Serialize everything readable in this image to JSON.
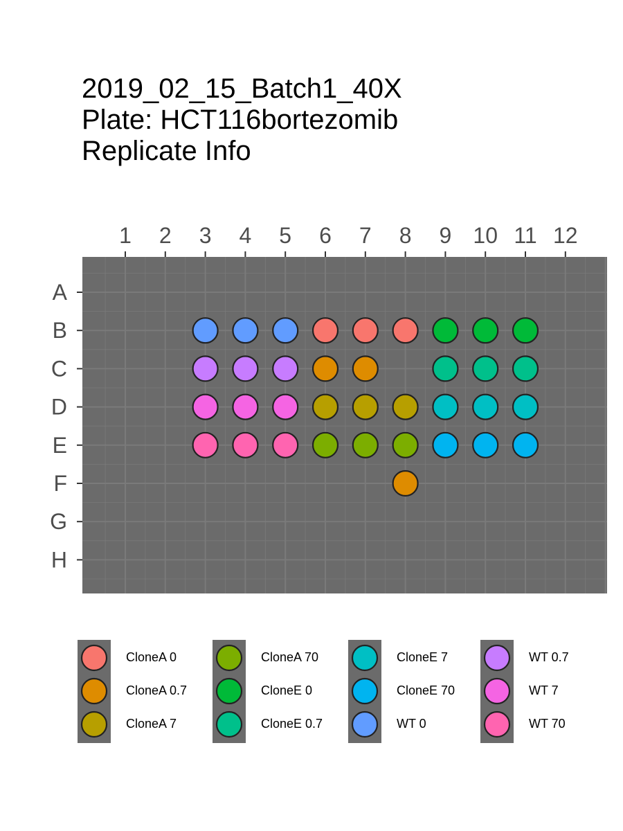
{
  "title_lines": [
    "2019_02_15_Batch1_40X",
    "Plate: HCT116bortezomib",
    "Replicate Info"
  ],
  "chart_data": {
    "type": "scatter",
    "chart_kind": "plate-map",
    "x_ticks": [
      "1",
      "2",
      "3",
      "4",
      "5",
      "6",
      "7",
      "8",
      "9",
      "10",
      "11",
      "12"
    ],
    "y_ticks": [
      "A",
      "B",
      "C",
      "D",
      "E",
      "F",
      "G",
      "H"
    ],
    "x_axis_position": "top",
    "panel_background": "#6b6b6b",
    "grid": true,
    "legend_position": "bottom",
    "series": [
      {
        "name": "CloneA 0",
        "color": "#F8766D",
        "wells": [
          [
            "B",
            6
          ],
          [
            "B",
            7
          ],
          [
            "B",
            8
          ]
        ]
      },
      {
        "name": "CloneA 0.7",
        "color": "#DE8C00",
        "wells": [
          [
            "C",
            6
          ],
          [
            "C",
            7
          ],
          [
            "F",
            8
          ]
        ]
      },
      {
        "name": "CloneA 7",
        "color": "#B79F00",
        "wells": [
          [
            "D",
            6
          ],
          [
            "D",
            7
          ],
          [
            "D",
            8
          ]
        ]
      },
      {
        "name": "CloneA 70",
        "color": "#7CAE00",
        "wells": [
          [
            "E",
            6
          ],
          [
            "E",
            7
          ],
          [
            "E",
            8
          ]
        ]
      },
      {
        "name": "CloneE 0",
        "color": "#00BA38",
        "wells": [
          [
            "B",
            9
          ],
          [
            "B",
            10
          ],
          [
            "B",
            11
          ]
        ]
      },
      {
        "name": "CloneE 0.7",
        "color": "#00C08B",
        "wells": [
          [
            "C",
            9
          ],
          [
            "C",
            10
          ],
          [
            "C",
            11
          ]
        ]
      },
      {
        "name": "CloneE 7",
        "color": "#00BFC4",
        "wells": [
          [
            "D",
            9
          ],
          [
            "D",
            10
          ],
          [
            "D",
            11
          ]
        ]
      },
      {
        "name": "CloneE 70",
        "color": "#00B4F0",
        "wells": [
          [
            "E",
            9
          ],
          [
            "E",
            10
          ],
          [
            "E",
            11
          ]
        ]
      },
      {
        "name": "WT 0",
        "color": "#619CFF",
        "wells": [
          [
            "B",
            3
          ],
          [
            "B",
            4
          ],
          [
            "B",
            5
          ]
        ]
      },
      {
        "name": "WT 0.7",
        "color": "#C77CFF",
        "wells": [
          [
            "C",
            3
          ],
          [
            "C",
            4
          ],
          [
            "C",
            5
          ]
        ]
      },
      {
        "name": "WT 7",
        "color": "#F564E3",
        "wells": [
          [
            "D",
            3
          ],
          [
            "D",
            4
          ],
          [
            "D",
            5
          ]
        ]
      },
      {
        "name": "WT 70",
        "color": "#FF64B0",
        "wells": [
          [
            "E",
            3
          ],
          [
            "E",
            4
          ],
          [
            "E",
            5
          ]
        ]
      }
    ]
  }
}
